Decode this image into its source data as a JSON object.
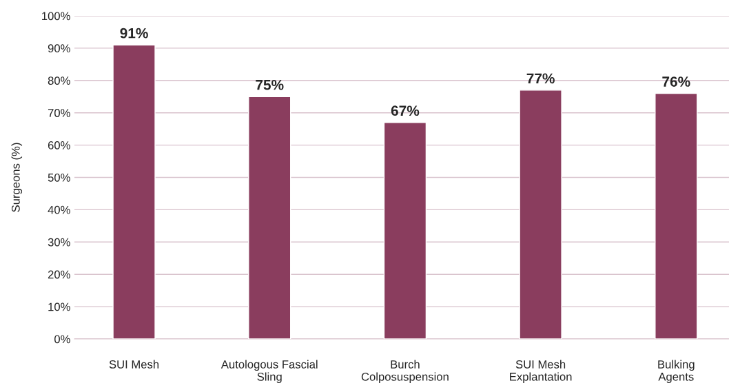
{
  "chart_data": {
    "type": "bar",
    "ylabel": "Surgeons (%)",
    "categories": [
      "SUI Mesh",
      "Autologous Fascial\nSling",
      "Burch\nColposuspension",
      "SUI Mesh\nExplantation",
      "Bulking\nAgents"
    ],
    "values": [
      91,
      75,
      67,
      77,
      76
    ],
    "color": "#8a3d5e",
    "value_labels": [
      "91%",
      "75%",
      "67%",
      "77%",
      "76%"
    ],
    "ylim": [
      0,
      100
    ],
    "yticks": [
      {
        "value": 0,
        "label": "0%"
      },
      {
        "value": 10,
        "label": "10%"
      },
      {
        "value": 20,
        "label": "20%"
      },
      {
        "value": 30,
        "label": "30%"
      },
      {
        "value": 40,
        "label": "40%"
      },
      {
        "value": 50,
        "label": "50%"
      },
      {
        "value": 60,
        "label": "60%"
      },
      {
        "value": 70,
        "label": "70%"
      },
      {
        "value": 80,
        "label": "80%"
      },
      {
        "value": 90,
        "label": "90%"
      },
      {
        "value": 100,
        "label": "100%"
      }
    ],
    "grid": "y"
  }
}
